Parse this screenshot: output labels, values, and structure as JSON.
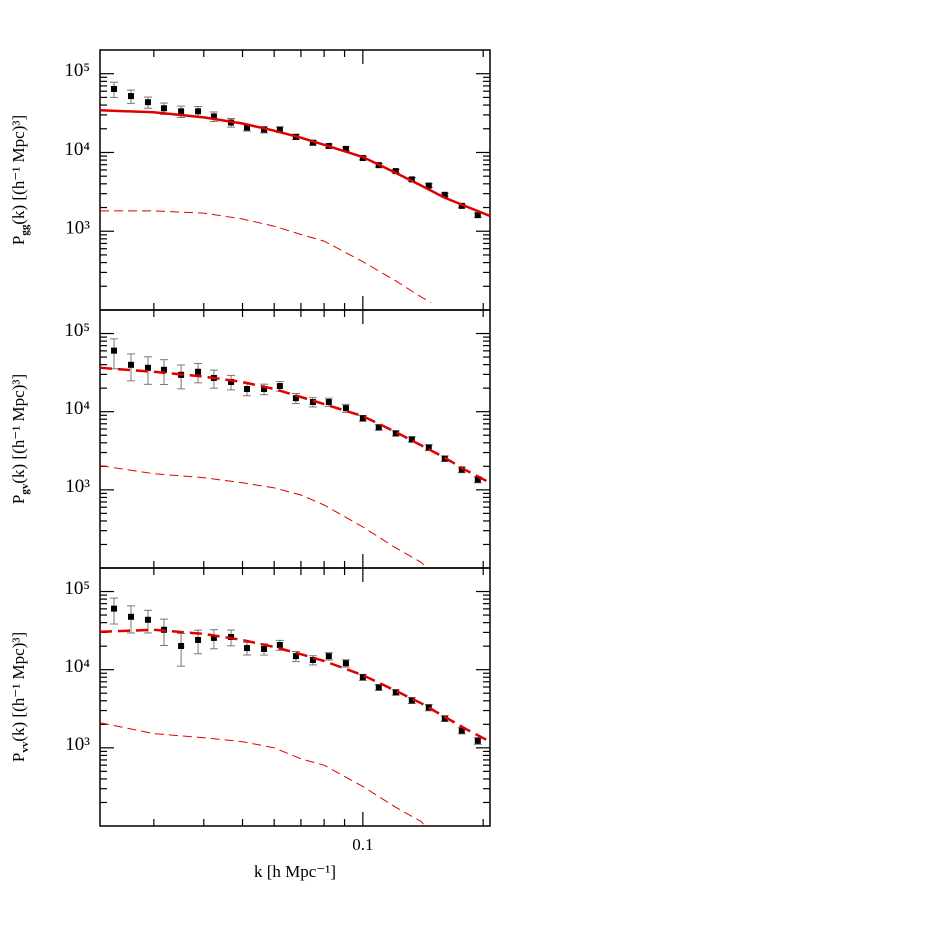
{
  "chart_data": [
    {
      "type": "errorbar-line",
      "ylabel": "P",
      "ylabel_sub": "gg",
      "ylabel_rest": "(k) [(h⁻¹ Mpc)³]",
      "xscale": "log",
      "yscale": "log",
      "xlim": [
        0.022,
        0.208
      ],
      "ylim": [
        100,
        200000
      ],
      "yticks": [
        {
          "value": 1000,
          "label": "10³"
        },
        {
          "value": 10000,
          "label": "10⁴"
        },
        {
          "value": 100000,
          "label": "10⁵"
        }
      ],
      "yminorticks": [
        200,
        300,
        400,
        500,
        600,
        700,
        800,
        900,
        2000,
        3000,
        4000,
        5000,
        6000,
        7000,
        8000,
        9000,
        20000,
        30000,
        40000,
        50000,
        60000,
        70000,
        80000,
        90000
      ],
      "xminorticks": [
        0.03,
        0.04,
        0.05,
        0.06,
        0.07,
        0.08,
        0.09,
        0.1,
        0.2
      ],
      "series": [
        {
          "style": "points",
          "color": "#000000",
          "error_color": "#777777",
          "x": [
            0.02385,
            0.0263,
            0.029,
            0.0318,
            0.0351,
            0.0387,
            0.0424,
            0.0468,
            0.0513,
            0.0566,
            0.062,
            0.068,
            0.075,
            0.0822,
            0.0907,
            0.1,
            0.1096,
            0.1209,
            0.1326,
            0.1462,
            0.1603,
            0.1768,
            0.1939
          ],
          "values": [
            64000,
            52000,
            43500,
            36400,
            33300,
            33300,
            28700,
            24000,
            20700,
            19500,
            19500,
            15800,
            13300,
            12100,
            11100,
            8500,
            6900,
            5800,
            4550,
            3800,
            2900,
            2100,
            1600
          ],
          "errors": [
            14000,
            10000,
            7000,
            6000,
            5500,
            5000,
            4000,
            3000,
            2000,
            1800,
            1600,
            1200,
            900,
            700,
            600,
            450,
            350,
            300,
            250,
            200,
            150,
            120,
            100
          ]
        },
        {
          "style": "solid",
          "color": "#e00000",
          "x": [
            0.022,
            0.03,
            0.04,
            0.05,
            0.06,
            0.07,
            0.08,
            0.1,
            0.12,
            0.14,
            0.16,
            0.18,
            0.208
          ],
          "values": [
            34300,
            32400,
            27900,
            23300,
            18900,
            15400,
            12500,
            8750,
            5600,
            3800,
            2670,
            2100,
            1560
          ]
        },
        {
          "style": "dashed",
          "color": "#e00000",
          "x": [
            0.022,
            0.03,
            0.04,
            0.05,
            0.06,
            0.07,
            0.08,
            0.1,
            0.12,
            0.14,
            0.148
          ],
          "values": [
            1810,
            1810,
            1700,
            1430,
            1160,
            910,
            750,
            410,
            240,
            146,
            125
          ]
        }
      ]
    },
    {
      "type": "errorbar-line",
      "ylabel": "P",
      "ylabel_sub": "gv",
      "ylabel_rest": "(k) [(h⁻¹ Mpc)³]",
      "xscale": "log",
      "yscale": "log",
      "xlim": [
        0.022,
        0.208
      ],
      "ylim": [
        100,
        200000
      ],
      "yticks": [
        {
          "value": 1000,
          "label": "10³"
        },
        {
          "value": 10000,
          "label": "10⁴"
        },
        {
          "value": 100000,
          "label": "10⁵"
        }
      ],
      "yminorticks": [
        200,
        300,
        400,
        500,
        600,
        700,
        800,
        900,
        2000,
        3000,
        4000,
        5000,
        6000,
        7000,
        8000,
        9000,
        20000,
        30000,
        40000,
        50000,
        60000,
        70000,
        80000,
        90000
      ],
      "xminorticks": [
        0.03,
        0.04,
        0.05,
        0.06,
        0.07,
        0.08,
        0.09,
        0.1,
        0.2
      ],
      "series": [
        {
          "style": "points",
          "color": "#000000",
          "error_color": "#777777",
          "x": [
            0.02385,
            0.0263,
            0.029,
            0.0318,
            0.0351,
            0.0387,
            0.0424,
            0.0468,
            0.0513,
            0.0566,
            0.062,
            0.068,
            0.075,
            0.0822,
            0.0907,
            0.1,
            0.1096,
            0.1209,
            0.1326,
            0.1462,
            0.1603,
            0.1768,
            0.1939
          ],
          "values": [
            60400,
            39800,
            36400,
            34300,
            29600,
            32400,
            27000,
            24000,
            19500,
            19500,
            21300,
            14900,
            13300,
            13300,
            11100,
            8240,
            6300,
            5280,
            4420,
            3480,
            2510,
            1810,
            1350
          ],
          "errors": [
            25000,
            15000,
            14000,
            12000,
            10000,
            9000,
            7000,
            5000,
            3500,
            3000,
            3000,
            2200,
            1800,
            1600,
            1300,
            700,
            500,
            400,
            350,
            300,
            200,
            150,
            120
          ]
        },
        {
          "style": "dashed-thick",
          "color": "#e00000",
          "x": [
            0.022,
            0.03,
            0.04,
            0.05,
            0.06,
            0.07,
            0.08,
            0.1,
            0.12,
            0.14,
            0.16,
            0.18,
            0.208
          ],
          "values": [
            36400,
            32400,
            28100,
            24000,
            19500,
            15400,
            12500,
            8750,
            5600,
            3700,
            2590,
            1810,
            1230
          ]
        },
        {
          "style": "dashed",
          "color": "#e00000",
          "x": [
            0.022,
            0.03,
            0.04,
            0.05,
            0.06,
            0.07,
            0.08,
            0.1,
            0.12,
            0.14,
            0.143
          ],
          "values": [
            2040,
            1610,
            1430,
            1230,
            1060,
            860,
            640,
            335,
            185,
            118,
            105
          ]
        }
      ]
    },
    {
      "type": "errorbar-line",
      "ylabel": "P",
      "ylabel_sub": "vv",
      "ylabel_rest": "(k) [(h⁻¹ Mpc)³]",
      "xlabel": "k [h Mpc⁻¹]",
      "xscale": "log",
      "yscale": "log",
      "xlim": [
        0.022,
        0.208
      ],
      "ylim": [
        100,
        200000
      ],
      "xticks": [
        0.1
      ],
      "yticks": [
        {
          "value": 1000,
          "label": "10³"
        },
        {
          "value": 10000,
          "label": "10⁴"
        },
        {
          "value": 100000,
          "label": "10⁵"
        }
      ],
      "yminorticks": [
        200,
        300,
        400,
        500,
        600,
        700,
        800,
        900,
        2000,
        3000,
        4000,
        5000,
        6000,
        7000,
        8000,
        9000,
        20000,
        30000,
        40000,
        50000,
        60000,
        70000,
        80000,
        90000
      ],
      "xminorticks": [
        0.03,
        0.04,
        0.05,
        0.06,
        0.07,
        0.08,
        0.09,
        0.2
      ],
      "series": [
        {
          "style": "points",
          "color": "#000000",
          "error_color": "#777777",
          "x": [
            0.02385,
            0.0263,
            0.029,
            0.0318,
            0.0351,
            0.0387,
            0.0424,
            0.0468,
            0.0513,
            0.0566,
            0.062,
            0.068,
            0.075,
            0.0822,
            0.0907,
            0.1,
            0.1096,
            0.1209,
            0.1326,
            0.1462,
            0.1603,
            0.1768,
            0.1939
          ],
          "values": [
            60400,
            47500,
            43500,
            32400,
            20100,
            24000,
            25500,
            26200,
            18900,
            18400,
            20700,
            14900,
            13300,
            14900,
            12100,
            8000,
            5940,
            5130,
            4040,
            3280,
            2370,
            1660,
            1230
          ],
          "errors": [
            22000,
            18000,
            14000,
            12000,
            9000,
            8000,
            7000,
            6000,
            3500,
            3000,
            3000,
            2200,
            1800,
            1600,
            1300,
            700,
            500,
            400,
            350,
            300,
            200,
            150,
            120
          ]
        },
        {
          "style": "dashed-thick",
          "color": "#e00000",
          "x": [
            0.022,
            0.03,
            0.04,
            0.05,
            0.06,
            0.07,
            0.08,
            0.1,
            0.12,
            0.14,
            0.16,
            0.18,
            0.208
          ],
          "values": [
            30500,
            32400,
            28700,
            24000,
            19500,
            15800,
            12900,
            8500,
            5460,
            3720,
            2500,
            1770,
            1200
          ]
        },
        {
          "style": "dashed",
          "color": "#e00000",
          "x": [
            0.022,
            0.03,
            0.04,
            0.05,
            0.06,
            0.07,
            0.08,
            0.1,
            0.12,
            0.14,
            0.143
          ],
          "values": [
            2100,
            1520,
            1350,
            1200,
            1000,
            725,
            600,
            320,
            177,
            114,
            100
          ]
        }
      ]
    }
  ]
}
